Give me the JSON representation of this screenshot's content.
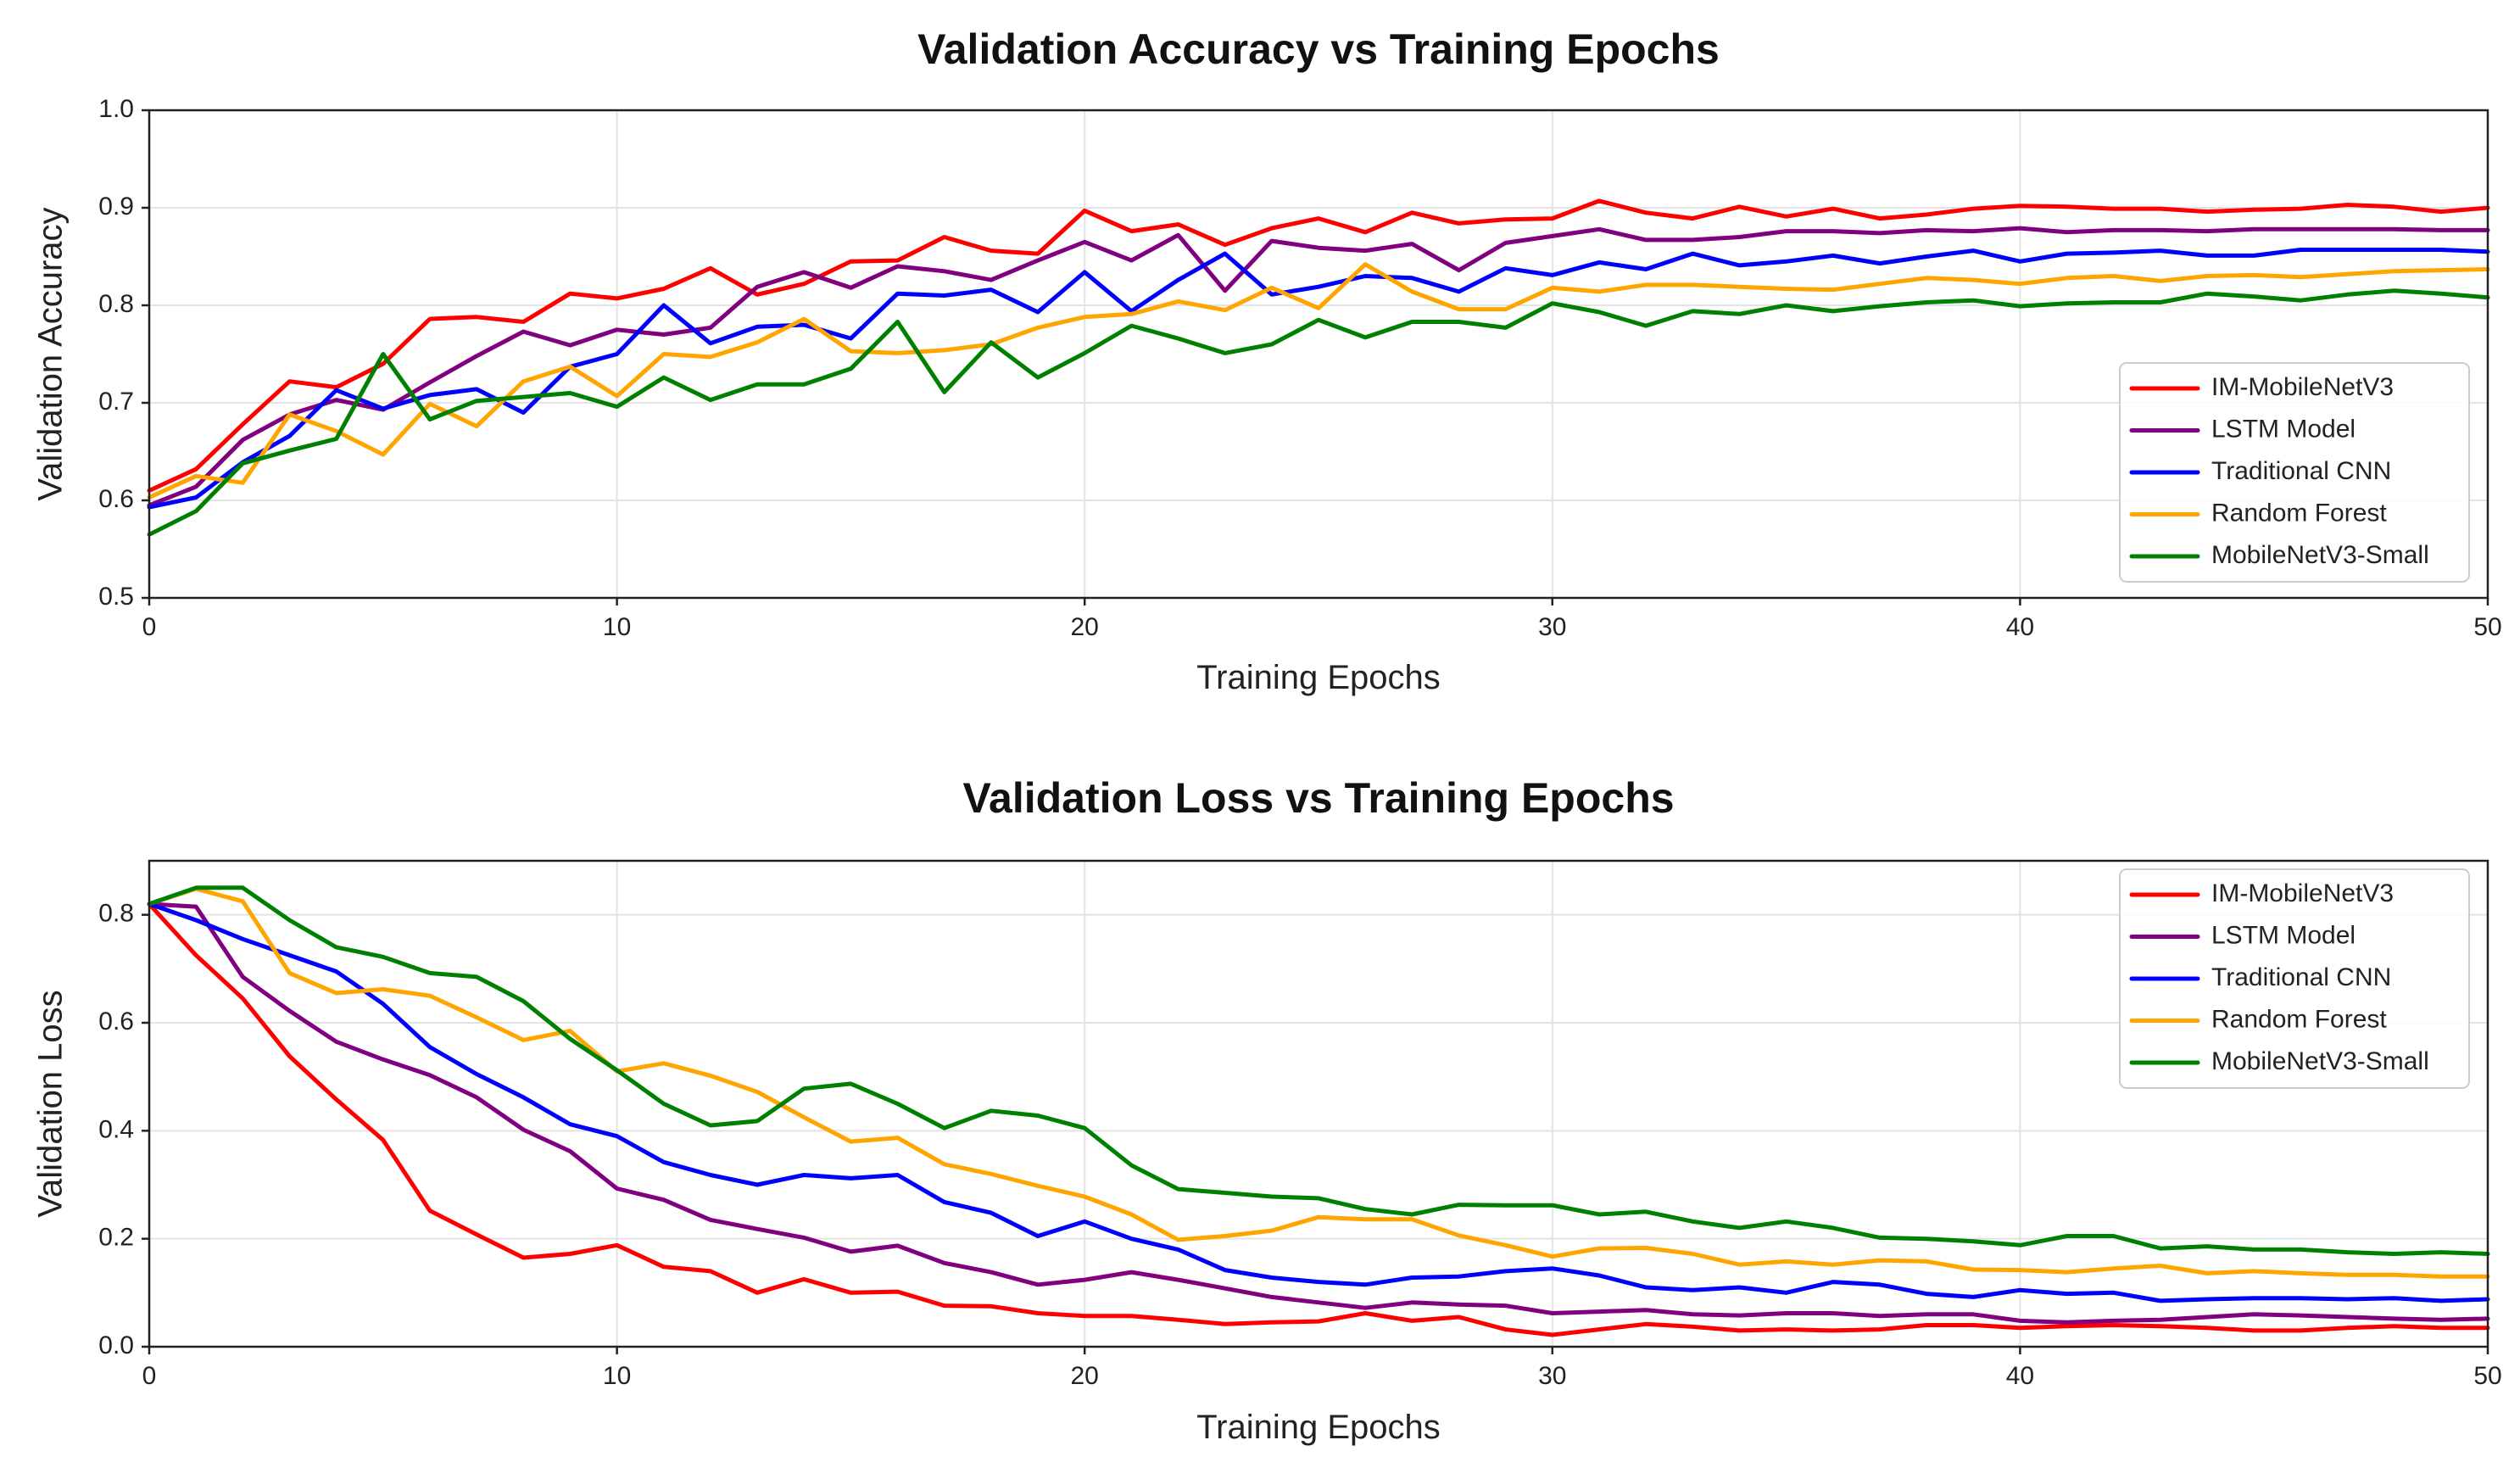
{
  "chart_data": [
    {
      "type": "line",
      "title": "Validation Accuracy vs Training Epochs",
      "xlabel": "Training Epochs",
      "ylabel": "Validation Accuracy",
      "xlim": [
        0,
        50
      ],
      "ylim": [
        0.5,
        1.0
      ],
      "xticks": [
        0,
        10,
        20,
        30,
        40,
        50
      ],
      "yticks": [
        "0.5",
        "0.6",
        "0.7",
        "0.8",
        "0.9",
        "1.0"
      ],
      "grid": true,
      "legend_position": "lower-right",
      "x": [
        0,
        1,
        2,
        3,
        4,
        5,
        6,
        7,
        8,
        9,
        10,
        11,
        12,
        13,
        14,
        15,
        16,
        17,
        18,
        19,
        20,
        21,
        22,
        23,
        24,
        25,
        26,
        27,
        28,
        29,
        30,
        31,
        32,
        33,
        34,
        35,
        36,
        37,
        38,
        39,
        40,
        41,
        42,
        43,
        44,
        45,
        46,
        47,
        48,
        49,
        50
      ],
      "series": [
        {
          "name": "IM-MobileNetV3",
          "color": "#ff0000",
          "values": [
            0.61,
            0.632,
            0.678,
            0.722,
            0.716,
            0.74,
            0.786,
            0.788,
            0.783,
            0.812,
            0.807,
            0.817,
            0.838,
            0.811,
            0.822,
            0.845,
            0.846,
            0.87,
            0.856,
            0.853,
            0.897,
            0.876,
            0.883,
            0.862,
            0.879,
            0.889,
            0.875,
            0.895,
            0.884,
            0.888,
            0.889,
            0.907,
            0.895,
            0.889,
            0.901,
            0.891,
            0.899,
            0.889,
            0.893,
            0.899,
            0.902,
            0.901,
            0.899,
            0.899,
            0.896,
            0.898,
            0.899,
            0.903,
            0.901,
            0.896,
            0.9
          ]
        },
        {
          "name": "LSTM Model",
          "color": "#800080",
          "values": [
            0.595,
            0.614,
            0.662,
            0.688,
            0.703,
            0.693,
            0.721,
            0.748,
            0.773,
            0.759,
            0.775,
            0.77,
            0.777,
            0.819,
            0.834,
            0.818,
            0.84,
            0.835,
            0.826,
            0.846,
            0.865,
            0.846,
            0.872,
            0.815,
            0.866,
            0.859,
            0.856,
            0.863,
            0.836,
            0.864,
            0.871,
            0.878,
            0.867,
            0.867,
            0.87,
            0.876,
            0.876,
            0.874,
            0.877,
            0.876,
            0.879,
            0.875,
            0.877,
            0.877,
            0.876,
            0.878,
            0.878,
            0.878,
            0.878,
            0.877,
            0.877
          ]
        },
        {
          "name": "Traditional CNN",
          "color": "#0000ff",
          "values": [
            0.593,
            0.603,
            0.639,
            0.666,
            0.713,
            0.694,
            0.708,
            0.714,
            0.69,
            0.737,
            0.75,
            0.8,
            0.761,
            0.778,
            0.78,
            0.766,
            0.812,
            0.81,
            0.816,
            0.793,
            0.834,
            0.794,
            0.826,
            0.853,
            0.811,
            0.819,
            0.83,
            0.828,
            0.814,
            0.838,
            0.831,
            0.844,
            0.837,
            0.853,
            0.841,
            0.845,
            0.851,
            0.843,
            0.85,
            0.856,
            0.845,
            0.853,
            0.854,
            0.856,
            0.851,
            0.851,
            0.857,
            0.857,
            0.857,
            0.857,
            0.855
          ]
        },
        {
          "name": "Random Forest",
          "color": "#ffa500",
          "values": [
            0.603,
            0.625,
            0.618,
            0.688,
            0.671,
            0.647,
            0.699,
            0.676,
            0.722,
            0.737,
            0.707,
            0.75,
            0.747,
            0.762,
            0.786,
            0.753,
            0.751,
            0.754,
            0.76,
            0.777,
            0.788,
            0.791,
            0.804,
            0.795,
            0.818,
            0.797,
            0.842,
            0.814,
            0.796,
            0.796,
            0.818,
            0.814,
            0.821,
            0.821,
            0.819,
            0.817,
            0.816,
            0.822,
            0.828,
            0.826,
            0.822,
            0.828,
            0.83,
            0.825,
            0.83,
            0.831,
            0.829,
            0.832,
            0.835,
            0.836,
            0.837
          ]
        },
        {
          "name": "MobileNetV3-Small",
          "color": "#008000",
          "values": [
            0.565,
            0.589,
            0.638,
            0.651,
            0.663,
            0.75,
            0.683,
            0.702,
            0.706,
            0.71,
            0.696,
            0.726,
            0.703,
            0.719,
            0.719,
            0.735,
            0.783,
            0.711,
            0.762,
            0.726,
            0.751,
            0.779,
            0.766,
            0.751,
            0.76,
            0.785,
            0.767,
            0.783,
            0.783,
            0.777,
            0.802,
            0.793,
            0.779,
            0.794,
            0.791,
            0.8,
            0.794,
            0.799,
            0.803,
            0.805,
            0.799,
            0.802,
            0.803,
            0.803,
            0.812,
            0.809,
            0.805,
            0.811,
            0.815,
            0.812,
            0.808
          ]
        }
      ]
    },
    {
      "type": "line",
      "title": "Validation Loss vs Training Epochs",
      "xlabel": "Training Epochs",
      "ylabel": "Validation Loss",
      "xlim": [
        0,
        50
      ],
      "ylim": [
        0.0,
        0.9
      ],
      "xticks": [
        0,
        10,
        20,
        30,
        40,
        50
      ],
      "yticks": [
        "0.0",
        "0.2",
        "0.4",
        "0.6",
        "0.8"
      ],
      "grid": true,
      "legend_position": "upper-right",
      "x": [
        0,
        1,
        2,
        3,
        4,
        5,
        6,
        7,
        8,
        9,
        10,
        11,
        12,
        13,
        14,
        15,
        16,
        17,
        18,
        19,
        20,
        21,
        22,
        23,
        24,
        25,
        26,
        27,
        28,
        29,
        30,
        31,
        32,
        33,
        34,
        35,
        36,
        37,
        38,
        39,
        40,
        41,
        42,
        43,
        44,
        45,
        46,
        47,
        48,
        49,
        50
      ],
      "series": [
        {
          "name": "IM-MobileNetV3",
          "color": "#ff0000",
          "values": [
            0.82,
            0.725,
            0.645,
            0.538,
            0.458,
            0.383,
            0.252,
            0.208,
            0.165,
            0.172,
            0.188,
            0.148,
            0.14,
            0.1,
            0.125,
            0.1,
            0.102,
            0.076,
            0.075,
            0.062,
            0.057,
            0.057,
            0.05,
            0.042,
            0.045,
            0.047,
            0.062,
            0.048,
            0.055,
            0.032,
            0.022,
            0.032,
            0.042,
            0.037,
            0.03,
            0.032,
            0.03,
            0.032,
            0.04,
            0.04,
            0.035,
            0.038,
            0.04,
            0.038,
            0.035,
            0.03,
            0.03,
            0.035,
            0.038,
            0.035,
            0.035
          ]
        },
        {
          "name": "LSTM Model",
          "color": "#800080",
          "values": [
            0.82,
            0.815,
            0.685,
            0.622,
            0.565,
            0.532,
            0.503,
            0.462,
            0.402,
            0.362,
            0.293,
            0.272,
            0.235,
            0.218,
            0.202,
            0.176,
            0.187,
            0.155,
            0.138,
            0.115,
            0.124,
            0.138,
            0.124,
            0.108,
            0.092,
            0.082,
            0.072,
            0.082,
            0.078,
            0.076,
            0.062,
            0.065,
            0.068,
            0.06,
            0.058,
            0.062,
            0.062,
            0.057,
            0.06,
            0.06,
            0.048,
            0.045,
            0.048,
            0.05,
            0.055,
            0.06,
            0.058,
            0.055,
            0.052,
            0.05,
            0.052
          ]
        },
        {
          "name": "Traditional CNN",
          "color": "#0000ff",
          "values": [
            0.82,
            0.79,
            0.755,
            0.725,
            0.695,
            0.635,
            0.555,
            0.505,
            0.462,
            0.412,
            0.39,
            0.342,
            0.318,
            0.3,
            0.318,
            0.312,
            0.318,
            0.268,
            0.248,
            0.205,
            0.232,
            0.2,
            0.18,
            0.142,
            0.128,
            0.12,
            0.115,
            0.128,
            0.13,
            0.14,
            0.145,
            0.132,
            0.11,
            0.105,
            0.11,
            0.1,
            0.12,
            0.115,
            0.098,
            0.092,
            0.105,
            0.098,
            0.1,
            0.085,
            0.088,
            0.09,
            0.09,
            0.088,
            0.09,
            0.085,
            0.088
          ]
        },
        {
          "name": "Random Forest",
          "color": "#ffa500",
          "values": [
            0.82,
            0.848,
            0.825,
            0.692,
            0.655,
            0.662,
            0.65,
            0.61,
            0.568,
            0.585,
            0.51,
            0.525,
            0.502,
            0.472,
            0.425,
            0.38,
            0.387,
            0.338,
            0.32,
            0.298,
            0.278,
            0.245,
            0.198,
            0.205,
            0.215,
            0.24,
            0.236,
            0.236,
            0.206,
            0.188,
            0.167,
            0.182,
            0.183,
            0.172,
            0.152,
            0.158,
            0.152,
            0.16,
            0.158,
            0.143,
            0.142,
            0.138,
            0.145,
            0.15,
            0.136,
            0.14,
            0.136,
            0.133,
            0.133,
            0.13,
            0.13
          ]
        },
        {
          "name": "MobileNetV3-Small",
          "color": "#008000",
          "values": [
            0.82,
            0.85,
            0.85,
            0.79,
            0.74,
            0.722,
            0.692,
            0.685,
            0.64,
            0.57,
            0.512,
            0.45,
            0.41,
            0.418,
            0.478,
            0.487,
            0.45,
            0.405,
            0.437,
            0.428,
            0.405,
            0.336,
            0.292,
            0.285,
            0.278,
            0.275,
            0.255,
            0.245,
            0.263,
            0.262,
            0.262,
            0.245,
            0.25,
            0.232,
            0.22,
            0.232,
            0.22,
            0.202,
            0.2,
            0.195,
            0.188,
            0.205,
            0.205,
            0.182,
            0.186,
            0.18,
            0.18,
            0.175,
            0.172,
            0.175,
            0.172
          ]
        }
      ]
    }
  ]
}
